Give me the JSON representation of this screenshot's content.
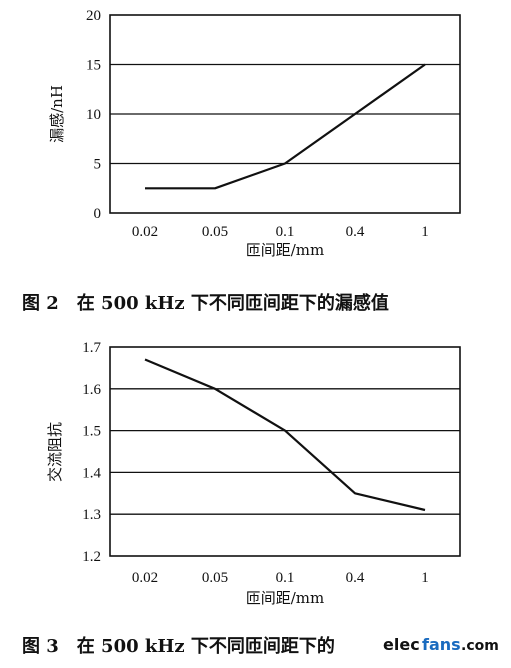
{
  "charts": [
    {
      "caption": "图 2　在 500 kHz 下不同匝间距下的漏感值",
      "ylabel": "漏感/nH",
      "xlabel": "匝间距/mm",
      "chart_data": {
        "type": "line",
        "categories": [
          "0.02",
          "0.05",
          "0.1",
          "0.4",
          "1"
        ],
        "values": [
          2.5,
          2.5,
          5,
          10,
          15
        ],
        "ylim": [
          0,
          20
        ],
        "yticks": [
          "0",
          "5",
          "10",
          "15",
          "20"
        ],
        "grid": "horizontal"
      }
    },
    {
      "caption": "图 3　在 500 kHz 下不同匝间距下的",
      "ylabel": "交流阻抗",
      "xlabel": "匝间距/mm",
      "chart_data": {
        "type": "line",
        "categories": [
          "0.02",
          "0.05",
          "0.1",
          "0.4",
          "1"
        ],
        "values": [
          1.67,
          1.6,
          1.5,
          1.35,
          1.31
        ],
        "ylim": [
          1.2,
          1.7
        ],
        "yticks": [
          "1.2",
          "1.3",
          "1.4",
          "1.5",
          "1.6",
          "1.7"
        ],
        "grid": "horizontal"
      }
    }
  ],
  "watermark": {
    "part1": "elec",
    "part2": "fans",
    "part3": ".com"
  }
}
